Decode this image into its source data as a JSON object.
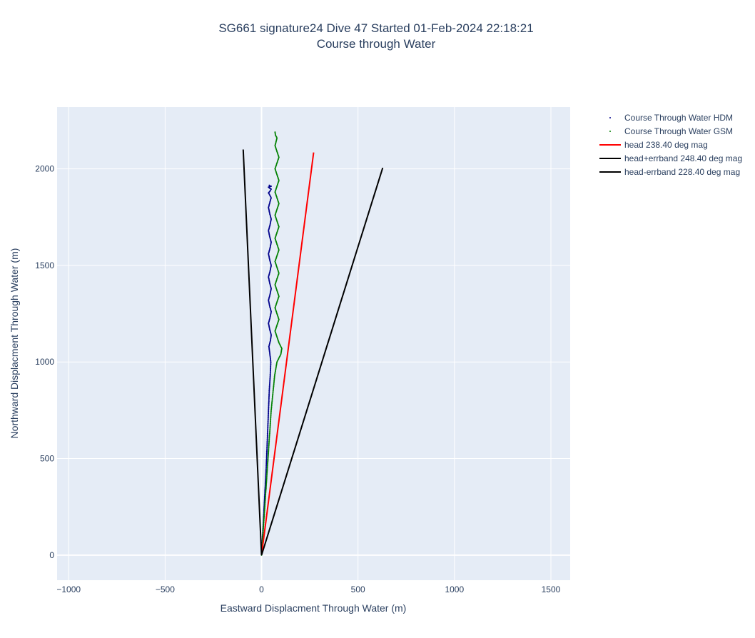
{
  "chart_data": {
    "type": "scatter",
    "title_line1": "SG661 signature24 Dive 47 Started 01-Feb-2024 22:18:21",
    "title_line2": "Course through Water",
    "xlabel": "Eastward Displacment Through Water (m)",
    "ylabel": "Northward Displacment Through Water (m)",
    "xlim": [
      -1060,
      1600
    ],
    "ylim": [
      -130,
      2320
    ],
    "x_ticks": [
      -1000,
      -500,
      0,
      500,
      1000,
      1500
    ],
    "x_tick_labels": [
      "−1000",
      "−500",
      "0",
      "500",
      "1000",
      "1500"
    ],
    "y_ticks": [
      0,
      500,
      1000,
      1500,
      2000
    ],
    "y_tick_labels": [
      "0",
      "500",
      "1000",
      "1500",
      "2000"
    ],
    "grid": true,
    "plot_bgcolor": "#e5ecf6",
    "legend_position": "right",
    "series": [
      {
        "name": "Course Through Water HDM",
        "kind": "markers",
        "color": "#00008b",
        "note_shape": "wavy path: linear 0-930 m north then oscillating",
        "x": [
          0,
          8,
          16,
          24,
          30,
          36,
          40,
          45,
          48,
          42,
          38,
          46,
          50,
          42,
          36,
          44,
          50,
          42,
          36,
          44,
          50,
          42,
          36,
          44,
          50,
          42,
          36,
          44,
          50,
          42,
          36,
          44,
          50,
          42,
          36,
          44,
          50,
          42,
          36,
          44,
          50,
          42,
          36,
          44,
          50,
          42,
          40
        ],
        "y": [
          0,
          150,
          300,
          450,
          600,
          750,
          850,
          930,
          1000,
          1050,
          1080,
          1110,
          1140,
          1170,
          1200,
          1230,
          1260,
          1290,
          1320,
          1350,
          1380,
          1410,
          1440,
          1470,
          1500,
          1530,
          1560,
          1590,
          1620,
          1650,
          1680,
          1710,
          1740,
          1770,
          1800,
          1830,
          1850,
          1865,
          1875,
          1885,
          1895,
          1900,
          1905,
          1908,
          1910,
          1912,
          1915
        ]
      },
      {
        "name": "Course Through Water GSM",
        "kind": "markers",
        "color": "#008000",
        "note_shape": "wavy path slightly east of HDM track, ending higher",
        "x": [
          0,
          10,
          20,
          30,
          40,
          50,
          60,
          68,
          80,
          100,
          105,
          90,
          80,
          70,
          80,
          90,
          80,
          70,
          80,
          90,
          80,
          70,
          80,
          90,
          80,
          70,
          80,
          90,
          80,
          70,
          80,
          90,
          80,
          70,
          80,
          90,
          80,
          70,
          80,
          90,
          80,
          70,
          80,
          90,
          80,
          70,
          75,
          80,
          72,
          70
        ],
        "y": [
          0,
          150,
          300,
          450,
          600,
          750,
          850,
          930,
          1000,
          1040,
          1070,
          1100,
          1130,
          1160,
          1190,
          1220,
          1250,
          1280,
          1310,
          1340,
          1370,
          1400,
          1430,
          1460,
          1490,
          1520,
          1550,
          1580,
          1610,
          1640,
          1670,
          1700,
          1730,
          1760,
          1790,
          1820,
          1850,
          1880,
          1910,
          1940,
          1970,
          2000,
          2030,
          2060,
          2090,
          2120,
          2140,
          2160,
          2175,
          2190
        ]
      },
      {
        "name": "head 238.40 deg mag",
        "kind": "line",
        "color": "#ff0000",
        "x": [
          0,
          270
        ],
        "y": [
          0,
          2085
        ]
      },
      {
        "name": "head+errband 248.40 deg mag",
        "kind": "line",
        "color": "#000000",
        "x": [
          0,
          -95
        ],
        "y": [
          0,
          2100
        ]
      },
      {
        "name": "head-errband 228.40 deg mag",
        "kind": "line",
        "color": "#000000",
        "x": [
          0,
          628
        ],
        "y": [
          0,
          2005
        ]
      }
    ]
  }
}
